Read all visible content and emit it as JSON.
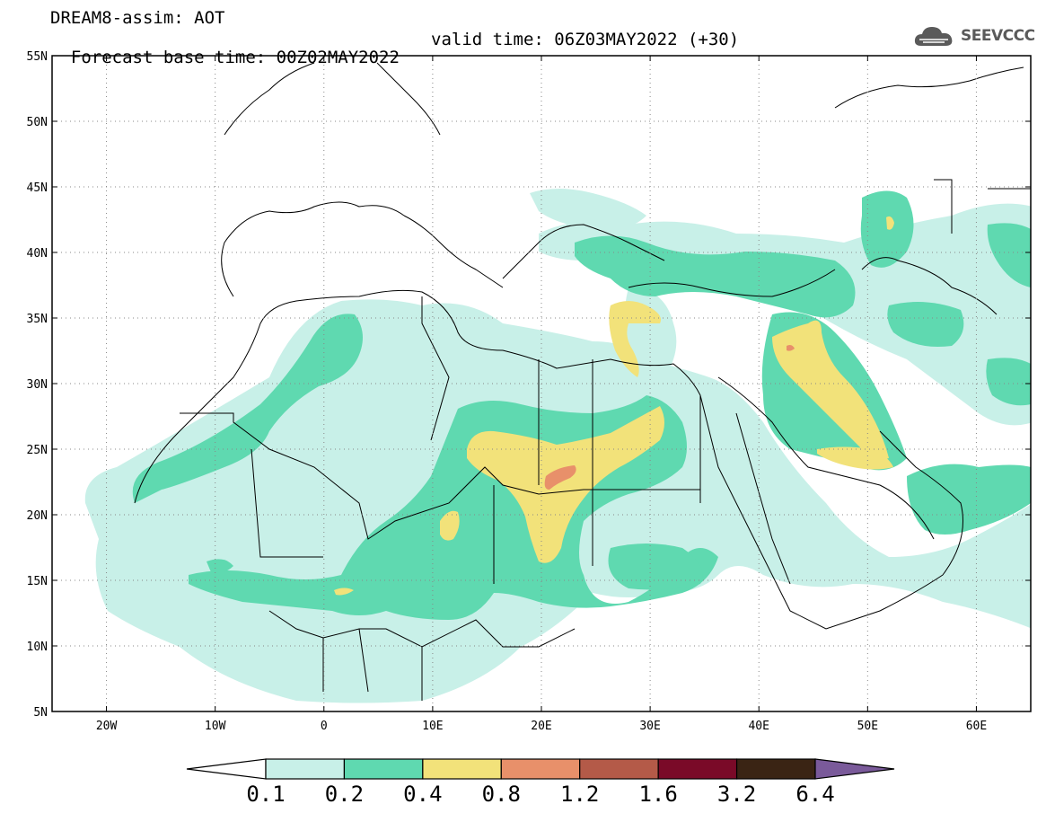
{
  "title": {
    "line1": "DREAM8-assim: AOT",
    "base_time": "Forecast base time: 00Z02MAY2022",
    "valid_time": "valid time: 06Z03MAY2022 (+30)"
  },
  "logo": {
    "text": "SEEVCCC",
    "icon": "cloud-icon"
  },
  "map": {
    "lat_labels": [
      "55N",
      "50N",
      "45N",
      "40N",
      "35N",
      "30N",
      "25N",
      "20N",
      "15N",
      "10N",
      "5N"
    ],
    "lon_labels": [
      "20W",
      "10W",
      "0",
      "10E",
      "20E",
      "30E",
      "40E",
      "50E",
      "60E"
    ],
    "lat_range": [
      5,
      55
    ],
    "lon_range": [
      -25,
      65
    ]
  },
  "colorbar": {
    "labels": [
      "0.1",
      "0.2",
      "0.4",
      "0.8",
      "1.2",
      "1.6",
      "3.2",
      "6.4"
    ],
    "colors": [
      "#ffffff",
      "#c8f0e8",
      "#5fd9b0",
      "#f2e27a",
      "#e8906a",
      "#b45a48",
      "#7a0a28",
      "#3a2414",
      "#7a5a9a"
    ]
  },
  "level_colors": {
    "aot_0_1_to_0_2": "#c8f0e8",
    "aot_0_2_to_0_4": "#5fd9b0",
    "aot_0_4_to_0_8": "#f2e27a",
    "aot_0_8_to_1_2": "#e8906a"
  }
}
